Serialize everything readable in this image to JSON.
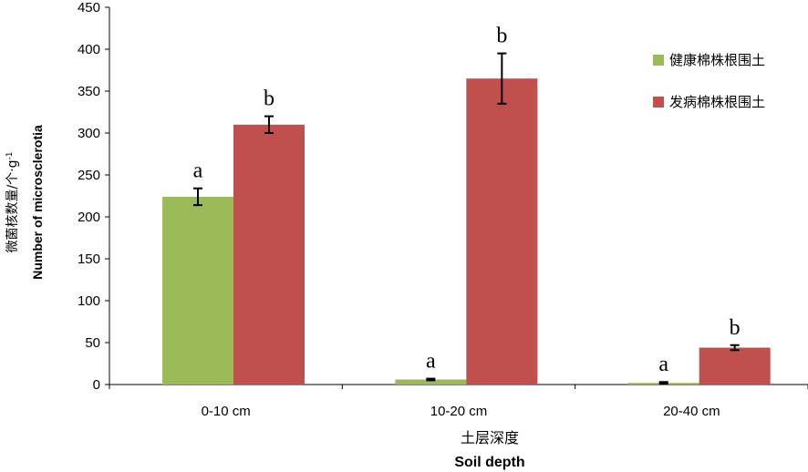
{
  "chart_data": {
    "type": "bar",
    "categories": [
      "0-10 cm",
      "10-20 cm",
      "20-40 cm"
    ],
    "series": [
      {
        "name": "健康棉株根围土",
        "color": "#9bbb59",
        "values": [
          224,
          6,
          2
        ],
        "errors": [
          10,
          1,
          1
        ],
        "labels": [
          "a",
          "a",
          "a"
        ]
      },
      {
        "name": "发病棉株根围土",
        "color": "#c0504d",
        "values": [
          310,
          365,
          44
        ],
        "errors": [
          10,
          30,
          3
        ],
        "labels": [
          "b",
          "b",
          "b"
        ]
      }
    ],
    "ylim": [
      0,
      450
    ],
    "yticks": [
      0,
      50,
      100,
      150,
      200,
      250,
      300,
      350,
      400,
      450
    ],
    "xlabel": {
      "zh": "土层深度",
      "en": "Soil depth"
    },
    "ylabel": {
      "zh": "微菌核数量/个·g",
      "sup": "-1",
      "en": "Number of microsclerotia"
    },
    "legend_position": "right",
    "grid": false
  }
}
